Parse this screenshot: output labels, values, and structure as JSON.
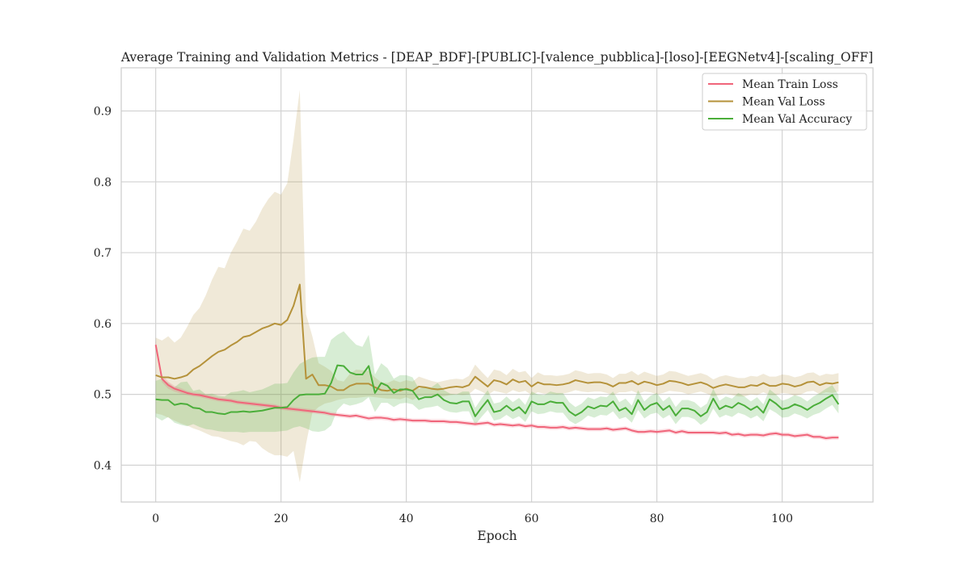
{
  "chart_data": {
    "type": "line",
    "title": "Average Training and Validation Metrics - [DEAP_BDF]-[PUBLIC]-[valence_pubblica]-[loso]-[EEGNetv4]-[scaling_OFF]",
    "xlabel": "Epoch",
    "ylabel": "",
    "xlim": [
      -5.5,
      114.5
    ],
    "ylim": [
      0.348,
      0.961
    ],
    "xticks": [
      0,
      20,
      40,
      60,
      80,
      100
    ],
    "yticks": [
      0.4,
      0.5,
      0.6,
      0.7,
      0.8,
      0.9
    ],
    "xtick_labels": [
      "0",
      "20",
      "40",
      "60",
      "80",
      "100"
    ],
    "ytick_labels": [
      "0.4",
      "0.5",
      "0.6",
      "0.7",
      "0.8",
      "0.9"
    ],
    "grid": true,
    "legend_position": "upper right",
    "x": [
      0,
      1,
      2,
      3,
      4,
      5,
      6,
      7,
      8,
      9,
      10,
      11,
      12,
      13,
      14,
      15,
      16,
      17,
      18,
      19,
      20,
      21,
      22,
      23,
      24,
      25,
      26,
      27,
      28,
      29,
      30,
      31,
      32,
      33,
      34,
      35,
      36,
      37,
      38,
      39,
      40,
      41,
      42,
      43,
      44,
      45,
      46,
      47,
      48,
      49,
      50,
      51,
      52,
      53,
      54,
      55,
      56,
      57,
      58,
      59,
      60,
      61,
      62,
      63,
      64,
      65,
      66,
      67,
      68,
      69,
      70,
      71,
      72,
      73,
      74,
      75,
      76,
      77,
      78,
      79,
      80,
      81,
      82,
      83,
      84,
      85,
      86,
      87,
      88,
      89,
      90,
      91,
      92,
      93,
      94,
      95,
      96,
      97,
      98,
      99,
      100,
      101,
      102,
      103,
      104,
      105,
      106,
      107,
      108,
      109
    ],
    "series": [
      {
        "name": "Mean Train Loss",
        "color": "#f0657a",
        "values": [
          0.57,
          0.522,
          0.513,
          0.508,
          0.505,
          0.502,
          0.5,
          0.499,
          0.497,
          0.495,
          0.493,
          0.492,
          0.491,
          0.489,
          0.488,
          0.487,
          0.486,
          0.485,
          0.484,
          0.483,
          0.481,
          0.48,
          0.479,
          0.478,
          0.477,
          0.476,
          0.475,
          0.474,
          0.472,
          0.471,
          0.47,
          0.469,
          0.47,
          0.468,
          0.466,
          0.467,
          0.467,
          0.466,
          0.464,
          0.465,
          0.464,
          0.463,
          0.463,
          0.463,
          0.462,
          0.462,
          0.462,
          0.461,
          0.461,
          0.46,
          0.459,
          0.458,
          0.459,
          0.46,
          0.457,
          0.458,
          0.457,
          0.456,
          0.457,
          0.455,
          0.456,
          0.454,
          0.454,
          0.453,
          0.453,
          0.454,
          0.452,
          0.453,
          0.452,
          0.451,
          0.451,
          0.451,
          0.452,
          0.45,
          0.451,
          0.452,
          0.449,
          0.447,
          0.447,
          0.448,
          0.447,
          0.448,
          0.449,
          0.446,
          0.448,
          0.446,
          0.446,
          0.446,
          0.446,
          0.446,
          0.445,
          0.446,
          0.443,
          0.444,
          0.442,
          0.443,
          0.443,
          0.442,
          0.444,
          0.445,
          0.443,
          0.443,
          0.441,
          0.442,
          0.443,
          0.44,
          0.44,
          0.438,
          0.439,
          0.439
        ],
        "band_lower": [
          0.565,
          0.517,
          0.508,
          0.504,
          0.501,
          0.499,
          0.497,
          0.496,
          0.494,
          0.492,
          0.49,
          0.489,
          0.488,
          0.486,
          0.485,
          0.484,
          0.483,
          0.482,
          0.481,
          0.48,
          0.478,
          0.477,
          0.476,
          0.475,
          0.474,
          0.473,
          0.472,
          0.471,
          0.469,
          0.468,
          0.467,
          0.466,
          0.467,
          0.465,
          0.463,
          0.464,
          0.464,
          0.463,
          0.461,
          0.462,
          0.461,
          0.46,
          0.46,
          0.46,
          0.459,
          0.459,
          0.459,
          0.458,
          0.458,
          0.457,
          0.456,
          0.455,
          0.456,
          0.457,
          0.454,
          0.455,
          0.454,
          0.453,
          0.454,
          0.452,
          0.453,
          0.451,
          0.451,
          0.45,
          0.45,
          0.451,
          0.449,
          0.45,
          0.449,
          0.448,
          0.448,
          0.448,
          0.449,
          0.447,
          0.448,
          0.449,
          0.446,
          0.444,
          0.444,
          0.445,
          0.444,
          0.445,
          0.446,
          0.443,
          0.445,
          0.443,
          0.443,
          0.443,
          0.443,
          0.443,
          0.442,
          0.443,
          0.44,
          0.441,
          0.439,
          0.44,
          0.44,
          0.439,
          0.441,
          0.442,
          0.44,
          0.44,
          0.438,
          0.439,
          0.44,
          0.437,
          0.437,
          0.435,
          0.436,
          0.436
        ],
        "band_upper": [
          0.575,
          0.527,
          0.518,
          0.512,
          0.509,
          0.505,
          0.503,
          0.502,
          0.5,
          0.498,
          0.496,
          0.495,
          0.494,
          0.492,
          0.491,
          0.49,
          0.489,
          0.488,
          0.487,
          0.486,
          0.484,
          0.483,
          0.482,
          0.481,
          0.48,
          0.479,
          0.478,
          0.477,
          0.475,
          0.474,
          0.473,
          0.472,
          0.473,
          0.471,
          0.469,
          0.47,
          0.47,
          0.469,
          0.467,
          0.468,
          0.467,
          0.466,
          0.466,
          0.466,
          0.465,
          0.465,
          0.465,
          0.464,
          0.464,
          0.463,
          0.462,
          0.461,
          0.462,
          0.463,
          0.46,
          0.461,
          0.46,
          0.459,
          0.46,
          0.458,
          0.459,
          0.457,
          0.457,
          0.456,
          0.456,
          0.457,
          0.455,
          0.456,
          0.455,
          0.454,
          0.454,
          0.454,
          0.455,
          0.453,
          0.454,
          0.455,
          0.452,
          0.45,
          0.45,
          0.451,
          0.45,
          0.451,
          0.452,
          0.449,
          0.451,
          0.449,
          0.449,
          0.449,
          0.449,
          0.449,
          0.448,
          0.449,
          0.446,
          0.447,
          0.445,
          0.446,
          0.446,
          0.445,
          0.447,
          0.448,
          0.446,
          0.446,
          0.444,
          0.445,
          0.446,
          0.443,
          0.443,
          0.441,
          0.442,
          0.442
        ]
      },
      {
        "name": "Mean Val Loss",
        "color": "#b5923a",
        "values": [
          0.527,
          0.524,
          0.524,
          0.522,
          0.524,
          0.527,
          0.535,
          0.54,
          0.547,
          0.554,
          0.56,
          0.563,
          0.569,
          0.574,
          0.581,
          0.583,
          0.588,
          0.593,
          0.596,
          0.6,
          0.598,
          0.605,
          0.625,
          0.655,
          0.522,
          0.528,
          0.513,
          0.513,
          0.511,
          0.506,
          0.506,
          0.512,
          0.515,
          0.515,
          0.515,
          0.51,
          0.506,
          0.505,
          0.507,
          0.505,
          0.508,
          0.505,
          0.511,
          0.51,
          0.508,
          0.507,
          0.508,
          0.51,
          0.511,
          0.51,
          0.513,
          0.525,
          0.518,
          0.511,
          0.52,
          0.518,
          0.514,
          0.521,
          0.517,
          0.519,
          0.511,
          0.517,
          0.514,
          0.514,
          0.513,
          0.514,
          0.516,
          0.52,
          0.518,
          0.516,
          0.517,
          0.517,
          0.515,
          0.511,
          0.516,
          0.516,
          0.519,
          0.514,
          0.518,
          0.516,
          0.513,
          0.515,
          0.519,
          0.518,
          0.516,
          0.513,
          0.515,
          0.517,
          0.514,
          0.509,
          0.512,
          0.514,
          0.512,
          0.51,
          0.51,
          0.513,
          0.512,
          0.516,
          0.512,
          0.512,
          0.515,
          0.514,
          0.511,
          0.513,
          0.517,
          0.518,
          0.513,
          0.516,
          0.515,
          0.517
        ],
        "band_lower": [
          0.473,
          0.471,
          0.467,
          0.463,
          0.459,
          0.456,
          0.452,
          0.449,
          0.445,
          0.441,
          0.44,
          0.437,
          0.434,
          0.432,
          0.428,
          0.434,
          0.433,
          0.424,
          0.418,
          0.414,
          0.414,
          0.412,
          0.42,
          0.376,
          0.43,
          0.474,
          0.482,
          0.487,
          0.489,
          0.492,
          0.494,
          0.495,
          0.495,
          0.496,
          0.497,
          0.496,
          0.495,
          0.494,
          0.494,
          0.493,
          0.496,
          0.492,
          0.497,
          0.498,
          0.497,
          0.497,
          0.497,
          0.499,
          0.5,
          0.499,
          0.5,
          0.508,
          0.504,
          0.499,
          0.505,
          0.503,
          0.501,
          0.506,
          0.503,
          0.505,
          0.499,
          0.503,
          0.501,
          0.501,
          0.5,
          0.501,
          0.503,
          0.506,
          0.504,
          0.503,
          0.504,
          0.504,
          0.502,
          0.499,
          0.503,
          0.503,
          0.505,
          0.501,
          0.504,
          0.503,
          0.5,
          0.502,
          0.505,
          0.504,
          0.503,
          0.5,
          0.502,
          0.504,
          0.501,
          0.497,
          0.499,
          0.501,
          0.499,
          0.497,
          0.497,
          0.5,
          0.499,
          0.503,
          0.499,
          0.499,
          0.502,
          0.501,
          0.498,
          0.5,
          0.504,
          0.505,
          0.5,
          0.503,
          0.502,
          0.504
        ],
        "band_upper": [
          0.58,
          0.576,
          0.582,
          0.573,
          0.58,
          0.595,
          0.612,
          0.622,
          0.64,
          0.662,
          0.68,
          0.678,
          0.7,
          0.716,
          0.734,
          0.731,
          0.744,
          0.762,
          0.776,
          0.786,
          0.782,
          0.798,
          0.86,
          0.93,
          0.613,
          0.582,
          0.544,
          0.539,
          0.533,
          0.52,
          0.518,
          0.529,
          0.535,
          0.534,
          0.533,
          0.524,
          0.517,
          0.516,
          0.52,
          0.517,
          0.52,
          0.518,
          0.525,
          0.522,
          0.519,
          0.517,
          0.519,
          0.521,
          0.522,
          0.521,
          0.526,
          0.542,
          0.532,
          0.523,
          0.535,
          0.533,
          0.527,
          0.536,
          0.531,
          0.533,
          0.523,
          0.531,
          0.527,
          0.527,
          0.526,
          0.527,
          0.529,
          0.534,
          0.532,
          0.529,
          0.53,
          0.53,
          0.528,
          0.523,
          0.529,
          0.529,
          0.533,
          0.527,
          0.532,
          0.529,
          0.526,
          0.528,
          0.533,
          0.532,
          0.529,
          0.526,
          0.528,
          0.53,
          0.527,
          0.521,
          0.525,
          0.527,
          0.525,
          0.523,
          0.523,
          0.526,
          0.525,
          0.529,
          0.525,
          0.525,
          0.528,
          0.527,
          0.524,
          0.526,
          0.53,
          0.531,
          0.526,
          0.529,
          0.528,
          0.53
        ]
      },
      {
        "name": "Mean Val Accuracy",
        "color": "#4bae3a",
        "values": [
          0.493,
          0.492,
          0.492,
          0.485,
          0.487,
          0.486,
          0.481,
          0.48,
          0.475,
          0.475,
          0.473,
          0.472,
          0.475,
          0.475,
          0.476,
          0.475,
          0.476,
          0.477,
          0.479,
          0.481,
          0.481,
          0.482,
          0.492,
          0.499,
          0.5,
          0.5,
          0.5,
          0.501,
          0.516,
          0.541,
          0.54,
          0.531,
          0.528,
          0.528,
          0.54,
          0.502,
          0.516,
          0.512,
          0.502,
          0.507,
          0.507,
          0.505,
          0.493,
          0.496,
          0.496,
          0.5,
          0.492,
          0.488,
          0.487,
          0.49,
          0.49,
          0.469,
          0.481,
          0.492,
          0.475,
          0.477,
          0.484,
          0.477,
          0.482,
          0.473,
          0.49,
          0.486,
          0.486,
          0.49,
          0.488,
          0.488,
          0.476,
          0.47,
          0.475,
          0.483,
          0.48,
          0.484,
          0.483,
          0.49,
          0.477,
          0.481,
          0.472,
          0.492,
          0.478,
          0.485,
          0.488,
          0.478,
          0.484,
          0.47,
          0.48,
          0.48,
          0.477,
          0.469,
          0.475,
          0.494,
          0.479,
          0.484,
          0.481,
          0.488,
          0.484,
          0.478,
          0.483,
          0.474,
          0.493,
          0.487,
          0.479,
          0.481,
          0.486,
          0.483,
          0.478,
          0.484,
          0.488,
          0.494,
          0.499,
          0.486
        ],
        "band_lower": [
          0.468,
          0.463,
          0.468,
          0.46,
          0.457,
          0.455,
          0.458,
          0.454,
          0.451,
          0.45,
          0.448,
          0.447,
          0.447,
          0.447,
          0.446,
          0.447,
          0.447,
          0.447,
          0.447,
          0.447,
          0.448,
          0.449,
          0.453,
          0.455,
          0.452,
          0.448,
          0.447,
          0.449,
          0.456,
          0.478,
          0.487,
          0.484,
          0.486,
          0.489,
          0.496,
          0.475,
          0.488,
          0.488,
          0.482,
          0.487,
          0.488,
          0.486,
          0.478,
          0.481,
          0.482,
          0.484,
          0.478,
          0.475,
          0.474,
          0.476,
          0.476,
          0.457,
          0.468,
          0.478,
          0.463,
          0.465,
          0.471,
          0.465,
          0.469,
          0.461,
          0.476,
          0.472,
          0.473,
          0.476,
          0.474,
          0.474,
          0.463,
          0.458,
          0.463,
          0.47,
          0.467,
          0.471,
          0.47,
          0.476,
          0.465,
          0.468,
          0.46,
          0.478,
          0.466,
          0.472,
          0.474,
          0.466,
          0.471,
          0.458,
          0.468,
          0.468,
          0.465,
          0.457,
          0.463,
          0.48,
          0.467,
          0.471,
          0.468,
          0.474,
          0.471,
          0.466,
          0.47,
          0.462,
          0.479,
          0.474,
          0.467,
          0.468,
          0.473,
          0.47,
          0.466,
          0.471,
          0.474,
          0.48,
          0.485,
          0.473
        ],
        "band_upper": [
          0.519,
          0.522,
          0.516,
          0.51,
          0.517,
          0.518,
          0.505,
          0.507,
          0.5,
          0.501,
          0.498,
          0.497,
          0.503,
          0.504,
          0.506,
          0.503,
          0.505,
          0.507,
          0.511,
          0.515,
          0.515,
          0.516,
          0.531,
          0.543,
          0.548,
          0.552,
          0.553,
          0.553,
          0.577,
          0.584,
          0.589,
          0.579,
          0.57,
          0.567,
          0.584,
          0.528,
          0.544,
          0.537,
          0.522,
          0.527,
          0.527,
          0.524,
          0.508,
          0.511,
          0.51,
          0.516,
          0.506,
          0.501,
          0.5,
          0.504,
          0.504,
          0.481,
          0.494,
          0.506,
          0.487,
          0.489,
          0.497,
          0.489,
          0.495,
          0.485,
          0.504,
          0.5,
          0.499,
          0.504,
          0.502,
          0.502,
          0.489,
          0.482,
          0.487,
          0.496,
          0.493,
          0.497,
          0.496,
          0.504,
          0.489,
          0.494,
          0.484,
          0.506,
          0.49,
          0.498,
          0.502,
          0.49,
          0.497,
          0.482,
          0.492,
          0.492,
          0.489,
          0.481,
          0.487,
          0.508,
          0.491,
          0.497,
          0.494,
          0.502,
          0.497,
          0.49,
          0.496,
          0.486,
          0.507,
          0.5,
          0.491,
          0.494,
          0.499,
          0.496,
          0.49,
          0.497,
          0.502,
          0.508,
          0.513,
          0.499
        ]
      }
    ]
  }
}
